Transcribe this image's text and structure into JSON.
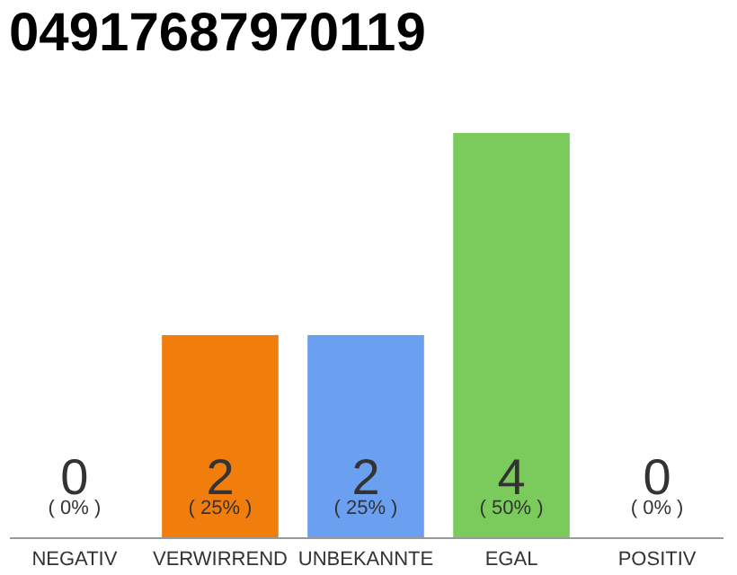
{
  "chart_data": {
    "type": "bar",
    "title": "04917687970119",
    "categories": [
      "NEGATIV",
      "VERWIRREND",
      "UNBEKANNTE",
      "EGAL",
      "POSITIV"
    ],
    "values": [
      0,
      2,
      2,
      4,
      0
    ],
    "colors": [
      "#eeeeee",
      "#f07d0c",
      "#6b9ff0",
      "#7acb5c",
      "#eeeeee"
    ],
    "data_labels": true,
    "annotations": [
      {
        "text": "( 0% )",
        "x": "NEGATIV",
        "y": 0
      },
      {
        "text": "( 25% )",
        "x": "VERWIRREND",
        "y": 0
      },
      {
        "text": "( 25% )",
        "x": "UNBEKANNTE",
        "y": 0
      },
      {
        "text": "( 50% )",
        "x": "EGAL",
        "y": 0
      },
      {
        "text": "( 0% )",
        "x": "POSITIV",
        "y": 0
      }
    ]
  }
}
